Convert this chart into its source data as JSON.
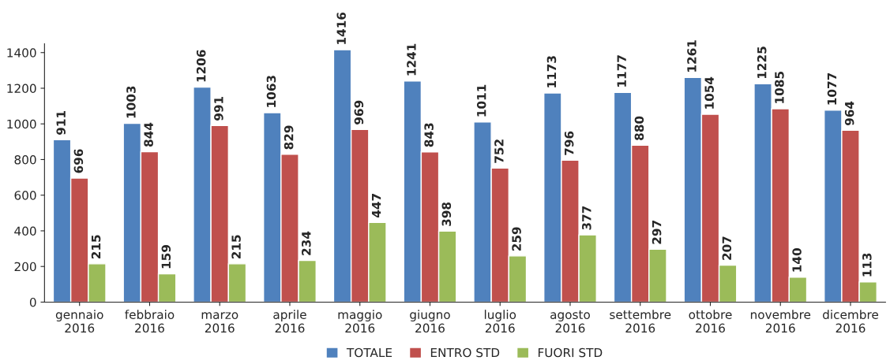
{
  "chart_data": {
    "type": "bar",
    "categories": [
      "gennaio\n2016",
      "febbraio\n2016",
      "marzo\n2016",
      "aprile\n2016",
      "maggio\n2016",
      "giugno\n2016",
      "luglio\n2016",
      "agosto\n2016",
      "settembre\n2016",
      "ottobre\n2016",
      "novembre\n2016",
      "dicembre\n2016"
    ],
    "series": [
      {
        "name": "TOTALE",
        "color": "#4f81bd",
        "values": [
          911,
          1003,
          1206,
          1063,
          1416,
          1241,
          1011,
          1173,
          1177,
          1261,
          1225,
          1077
        ]
      },
      {
        "name": "ENTRO STD",
        "color": "#c0504d",
        "values": [
          696,
          844,
          991,
          829,
          969,
          843,
          752,
          796,
          880,
          1054,
          1085,
          964
        ]
      },
      {
        "name": "FUORI STD",
        "color": "#9bbb59",
        "values": [
          215,
          159,
          215,
          234,
          447,
          398,
          259,
          377,
          297,
          207,
          140,
          113
        ]
      }
    ],
    "ylim": [
      0,
      1450
    ],
    "yticks": [
      0,
      200,
      400,
      600,
      800,
      1000,
      1200,
      1400
    ],
    "grid": false,
    "legend": "bottom",
    "data_labels": true
  }
}
